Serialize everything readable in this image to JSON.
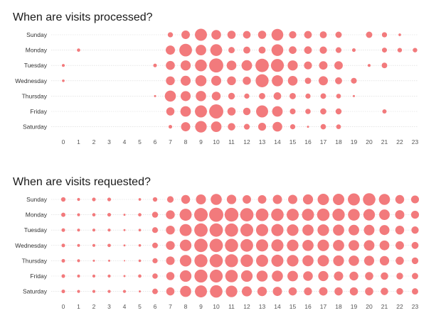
{
  "colors": {
    "bubble": "#f27a7c",
    "text": "#1a1a1a",
    "grid": "#d7d7d7"
  },
  "chart_data": [
    {
      "type": "scatter",
      "title": "When are visits processed?",
      "encoding": "bubble size = relative volume (0-10 scale)",
      "days": [
        "Sunday",
        "Monday",
        "Tuesday",
        "Wednesday",
        "Thursday",
        "Friday",
        "Saturday"
      ],
      "hours": [
        "0",
        "1",
        "2",
        "3",
        "4",
        "5",
        "6",
        "7",
        "8",
        "9",
        "10",
        "11",
        "12",
        "13",
        "14",
        "15",
        "16",
        "17",
        "18",
        "19",
        "20",
        "21",
        "22",
        "23"
      ],
      "grid": true,
      "values": [
        [
          0,
          0,
          0,
          0,
          0,
          0,
          0,
          1.2,
          3.2,
          6.5,
          4.2,
          3.0,
          2.6,
          3.0,
          6.2,
          2.4,
          2.6,
          2.2,
          1.8,
          0,
          1.8,
          1.2,
          0.3,
          0
        ],
        [
          0,
          0.5,
          0,
          0,
          0,
          0,
          0,
          3.8,
          7.2,
          5.0,
          6.3,
          1.8,
          2.2,
          2.2,
          6.2,
          2.6,
          2.6,
          2.4,
          1.5,
          0.6,
          0,
          1.1,
          0.9,
          0.9
        ],
        [
          0.4,
          0,
          0,
          0,
          0,
          0,
          0.6,
          3.6,
          4.6,
          6.2,
          9.0,
          4.2,
          5.0,
          8.0,
          7.5,
          4.6,
          2.8,
          3.2,
          3.2,
          0,
          0.4,
          1.4,
          0,
          0
        ],
        [
          0.3,
          0,
          0,
          0,
          0,
          0,
          0,
          3.5,
          4.5,
          5.5,
          4.5,
          3.5,
          3.0,
          7.6,
          5.6,
          4.2,
          1.8,
          3.8,
          2.2,
          1.5,
          0,
          0,
          0,
          0
        ],
        [
          0,
          0,
          0,
          0,
          0,
          0,
          0.2,
          5.5,
          4.5,
          4.8,
          3.5,
          2.0,
          1.2,
          1.8,
          2.6,
          1.8,
          1.2,
          1.4,
          1.0,
          0.2,
          0,
          0,
          0,
          0
        ],
        [
          0,
          0,
          0,
          0,
          0,
          0,
          0,
          3.0,
          5.0,
          6.5,
          9.0,
          3.0,
          2.5,
          6.5,
          5.0,
          1.5,
          1.3,
          1.7,
          1.6,
          0,
          0,
          0.8,
          0,
          0
        ],
        [
          0,
          0,
          0,
          0,
          0,
          0,
          0,
          0.6,
          3.8,
          6.0,
          5.0,
          2.5,
          1.5,
          2.8,
          4.2,
          1.2,
          0.2,
          1.3,
          1.0,
          0,
          0,
          0,
          0,
          0
        ]
      ]
    },
    {
      "type": "scatter",
      "title": "When are visits requested?",
      "encoding": "bubble size = relative volume (0-10 scale)",
      "days": [
        "Sunday",
        "Monday",
        "Tuesday",
        "Wednesday",
        "Thursday",
        "Friday",
        "Saturday"
      ],
      "hours": [
        "0",
        "1",
        "2",
        "3",
        "4",
        "5",
        "6",
        "7",
        "8",
        "9",
        "10",
        "11",
        "12",
        "13",
        "14",
        "15",
        "16",
        "17",
        "18",
        "19",
        "20",
        "21",
        "22",
        "23"
      ],
      "grid": true,
      "values": [
        [
          0.9,
          0.4,
          0.6,
          0.6,
          0,
          0.3,
          0.9,
          1.9,
          3.5,
          4.5,
          5.5,
          4.0,
          3.2,
          3.2,
          3.8,
          3.8,
          4.6,
          5.8,
          5.8,
          6.5,
          7.0,
          5.5,
          3.5,
          2.8
        ],
        [
          0.8,
          0.4,
          0.5,
          0.6,
          0.2,
          0.5,
          1.6,
          3.5,
          6.5,
          8.2,
          9.0,
          8.5,
          8.0,
          7.2,
          7.0,
          6.5,
          6.5,
          7.0,
          6.8,
          6.2,
          6.0,
          5.0,
          3.8,
          2.8
        ],
        [
          0.6,
          0.4,
          0.4,
          0.4,
          0.2,
          0.3,
          1.5,
          3.5,
          6.5,
          8.0,
          8.0,
          7.8,
          7.4,
          6.6,
          6.6,
          6.0,
          5.6,
          6.0,
          5.6,
          5.0,
          5.0,
          4.5,
          3.5,
          2.4
        ],
        [
          0.6,
          0.4,
          0.4,
          0.5,
          0.2,
          0.3,
          1.4,
          3.5,
          6.0,
          8.0,
          8.0,
          7.8,
          7.2,
          6.6,
          6.6,
          6.0,
          5.6,
          6.0,
          5.6,
          5.0,
          5.0,
          4.3,
          3.2,
          2.2
        ],
        [
          0.6,
          0.4,
          0.2,
          0.2,
          0.1,
          0.3,
          1.2,
          3.3,
          6.0,
          7.6,
          7.8,
          7.6,
          7.0,
          6.5,
          6.5,
          6.0,
          5.5,
          5.8,
          5.2,
          4.8,
          4.5,
          4.0,
          3.0,
          2.0
        ],
        [
          0.6,
          0.4,
          0.4,
          0.4,
          0.2,
          0.5,
          1.3,
          3.0,
          6.0,
          7.6,
          7.5,
          7.0,
          6.0,
          5.5,
          5.5,
          5.0,
          4.2,
          4.6,
          3.8,
          3.5,
          3.0,
          2.5,
          2.0,
          1.8
        ],
        [
          0.6,
          0.4,
          0.4,
          0.4,
          0.4,
          0.2,
          1.4,
          3.0,
          5.5,
          6.5,
          7.0,
          6.0,
          4.5,
          4.0,
          3.8,
          3.0,
          2.8,
          3.2,
          3.0,
          3.0,
          3.0,
          2.5,
          2.0,
          1.8
        ]
      ]
    }
  ]
}
